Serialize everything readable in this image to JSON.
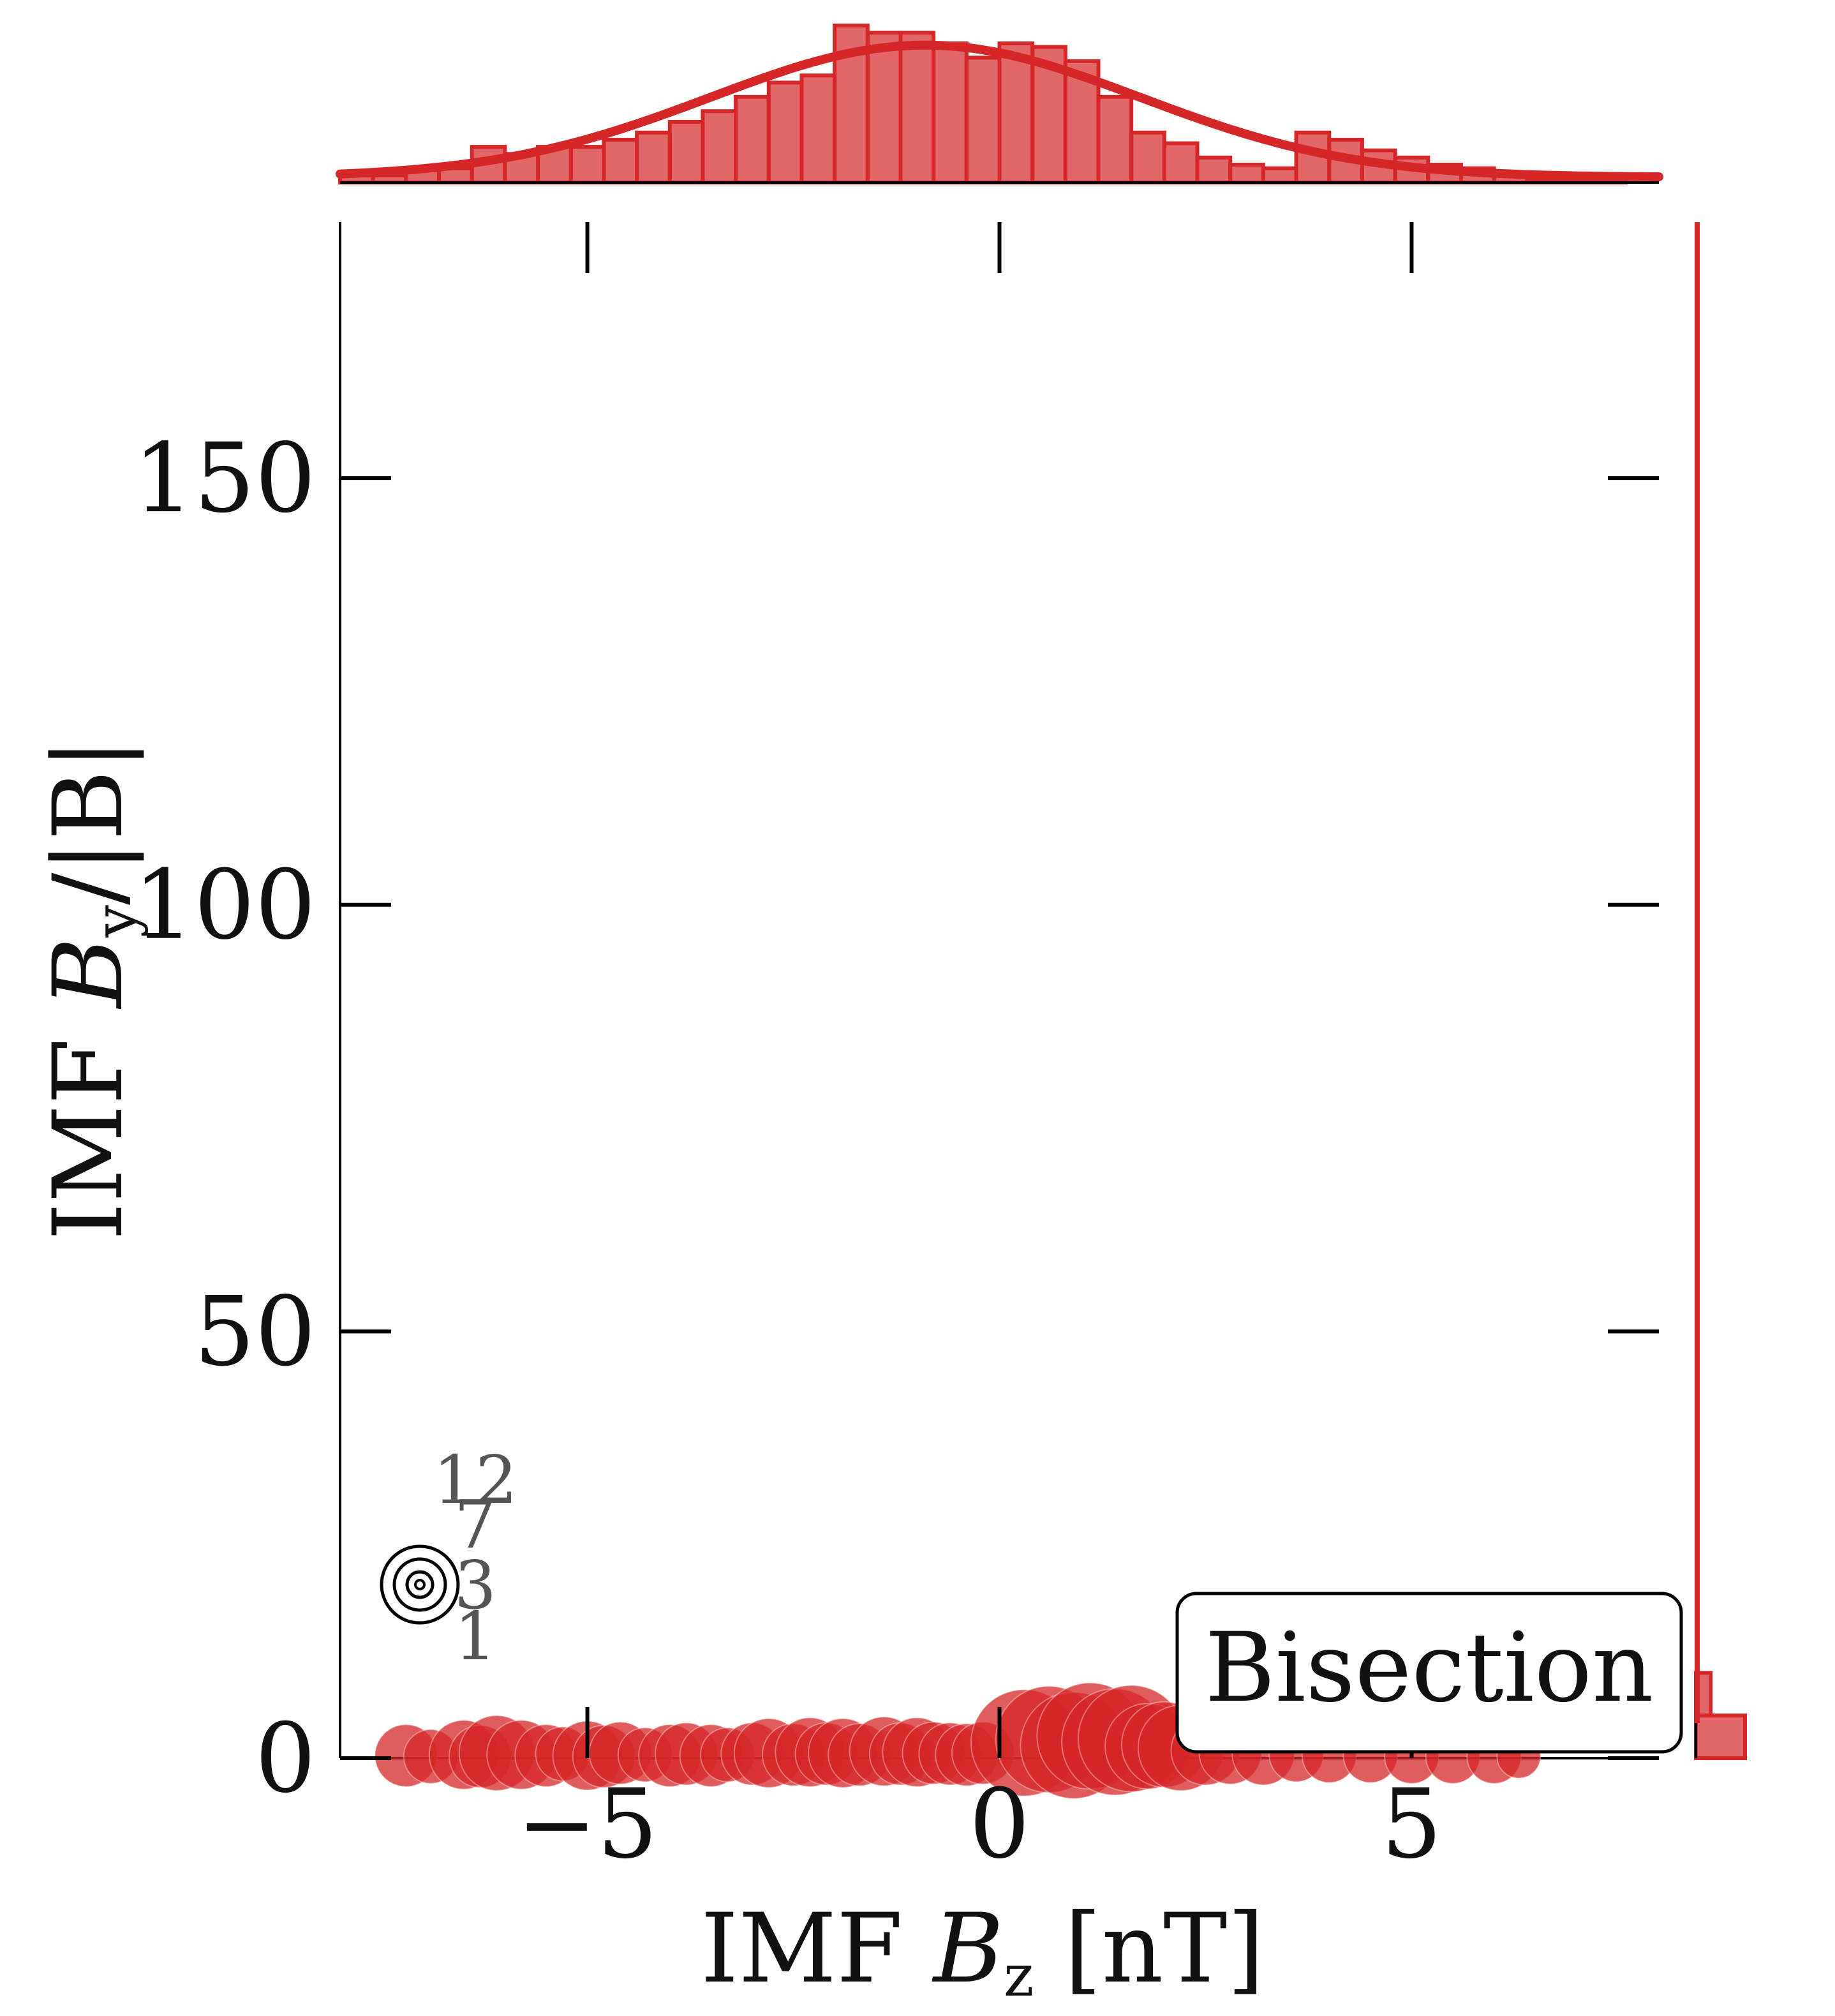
{
  "chart_data": {
    "type": "scatter",
    "xlabel": "IMF B_z [nT]",
    "xlabel_parts": {
      "prefix": "IMF ",
      "var": "B",
      "sub": "z",
      "suffix": " [nT]"
    },
    "ylabel": "IMF B_y/|B|",
    "ylabel_parts": {
      "prefix": "IMF ",
      "var": "B",
      "sub": "y",
      "suffix": "/|B|"
    },
    "xlim": [
      -8,
      8
    ],
    "ylim": [
      0,
      180
    ],
    "x_ticks": [
      -5,
      0,
      5
    ],
    "x_tick_labels": [
      "−5",
      "0",
      "5"
    ],
    "y_ticks": [
      0,
      50,
      100,
      150
    ],
    "y_tick_labels": [
      "0",
      "50",
      "100",
      "150"
    ],
    "grid": false,
    "color": "#d62728",
    "annotation_box": "Bisection",
    "size_legend": {
      "labels": [
        "12",
        "7",
        "3",
        "1"
      ],
      "position": "lower-left"
    },
    "points": [
      {
        "x": -7.2,
        "y": 0.3,
        "s": 3
      },
      {
        "x": -6.9,
        "y": 0.2,
        "s": 2
      },
      {
        "x": -6.5,
        "y": 0.4,
        "s": 4
      },
      {
        "x": -6.3,
        "y": 0.2,
        "s": 3
      },
      {
        "x": -6.1,
        "y": 0.6,
        "s": 5
      },
      {
        "x": -5.8,
        "y": 0.4,
        "s": 4
      },
      {
        "x": -5.5,
        "y": 0.3,
        "s": 3
      },
      {
        "x": -5.3,
        "y": 0.5,
        "s": 2
      },
      {
        "x": -5.0,
        "y": 0.3,
        "s": 4
      },
      {
        "x": -4.8,
        "y": 0.2,
        "s": 3
      },
      {
        "x": -4.6,
        "y": 0.6,
        "s": 3
      },
      {
        "x": -4.3,
        "y": 0.4,
        "s": 2
      },
      {
        "x": -4.0,
        "y": 0.3,
        "s": 3
      },
      {
        "x": -3.8,
        "y": 0.5,
        "s": 3
      },
      {
        "x": -3.5,
        "y": 0.3,
        "s": 3
      },
      {
        "x": -3.3,
        "y": 0.4,
        "s": 2
      },
      {
        "x": -3.0,
        "y": 0.5,
        "s": 3
      },
      {
        "x": -2.8,
        "y": 0.6,
        "s": 4
      },
      {
        "x": -2.5,
        "y": 0.4,
        "s": 3
      },
      {
        "x": -2.3,
        "y": 0.7,
        "s": 4
      },
      {
        "x": -2.1,
        "y": 0.5,
        "s": 3
      },
      {
        "x": -1.9,
        "y": 0.6,
        "s": 4
      },
      {
        "x": -1.7,
        "y": 0.4,
        "s": 3
      },
      {
        "x": -1.4,
        "y": 0.8,
        "s": 4
      },
      {
        "x": -1.2,
        "y": 0.5,
        "s": 3
      },
      {
        "x": -1.0,
        "y": 0.7,
        "s": 4
      },
      {
        "x": -0.8,
        "y": 0.6,
        "s": 3
      },
      {
        "x": -0.6,
        "y": 0.5,
        "s": 3
      },
      {
        "x": -0.4,
        "y": 0.4,
        "s": 3
      },
      {
        "x": -0.2,
        "y": 0.6,
        "s": 3
      },
      {
        "x": 0.3,
        "y": 1.8,
        "s": 12
      },
      {
        "x": 0.6,
        "y": 2.2,
        "s": 12
      },
      {
        "x": 0.9,
        "y": 1.5,
        "s": 12
      },
      {
        "x": 1.1,
        "y": 2.6,
        "s": 12
      },
      {
        "x": 1.4,
        "y": 1.9,
        "s": 12
      },
      {
        "x": 1.6,
        "y": 2.3,
        "s": 12
      },
      {
        "x": 1.8,
        "y": 1.4,
        "s": 7
      },
      {
        "x": 2.0,
        "y": 1.6,
        "s": 7
      },
      {
        "x": 2.2,
        "y": 1.2,
        "s": 7
      },
      {
        "x": 2.5,
        "y": 0.9,
        "s": 4
      },
      {
        "x": 2.8,
        "y": 0.6,
        "s": 3
      },
      {
        "x": 3.2,
        "y": 0.5,
        "s": 3
      },
      {
        "x": 3.6,
        "y": 0.4,
        "s": 2
      },
      {
        "x": 4.0,
        "y": 0.3,
        "s": 2
      },
      {
        "x": 4.5,
        "y": 0.3,
        "s": 2
      },
      {
        "x": 5.0,
        "y": 0.2,
        "s": 2
      },
      {
        "x": 5.5,
        "y": 0.2,
        "s": 2
      },
      {
        "x": 6.0,
        "y": 0.2,
        "s": 2
      },
      {
        "x": 6.3,
        "y": 0.2,
        "s": 1
      }
    ],
    "top_histogram": {
      "bin_edges": [
        -8.0,
        -7.6,
        -7.2,
        -6.8,
        -6.4,
        -6.0,
        -5.6,
        -5.2,
        -4.8,
        -4.4,
        -4.0,
        -3.6,
        -3.2,
        -2.8,
        -2.4,
        -2.0,
        -1.6,
        -1.2,
        -0.8,
        -0.4,
        0.0,
        0.4,
        0.8,
        1.2,
        1.6,
        2.0,
        2.4,
        2.8,
        3.2,
        3.6,
        4.0,
        4.4,
        4.8,
        5.2,
        5.6,
        6.0,
        6.4,
        6.8,
        7.2,
        7.6,
        8.0
      ],
      "densities": [
        0.02,
        0.02,
        0.04,
        0.04,
        0.1,
        0.08,
        0.1,
        0.1,
        0.12,
        0.14,
        0.17,
        0.2,
        0.24,
        0.28,
        0.3,
        0.44,
        0.42,
        0.42,
        0.39,
        0.35,
        0.39,
        0.38,
        0.34,
        0.24,
        0.14,
        0.11,
        0.07,
        0.05,
        0.04,
        0.14,
        0.12,
        0.09,
        0.07,
        0.05,
        0.04,
        0.02,
        0.01,
        0.01,
        0.01,
        0.0
      ],
      "kde_mean": -0.9,
      "kde_sd": 2.6,
      "kde_peak": 0.37
    },
    "right_histogram": {
      "bin_edges": [
        0,
        5,
        10
      ],
      "densities": [
        1.0,
        0.3
      ]
    }
  }
}
